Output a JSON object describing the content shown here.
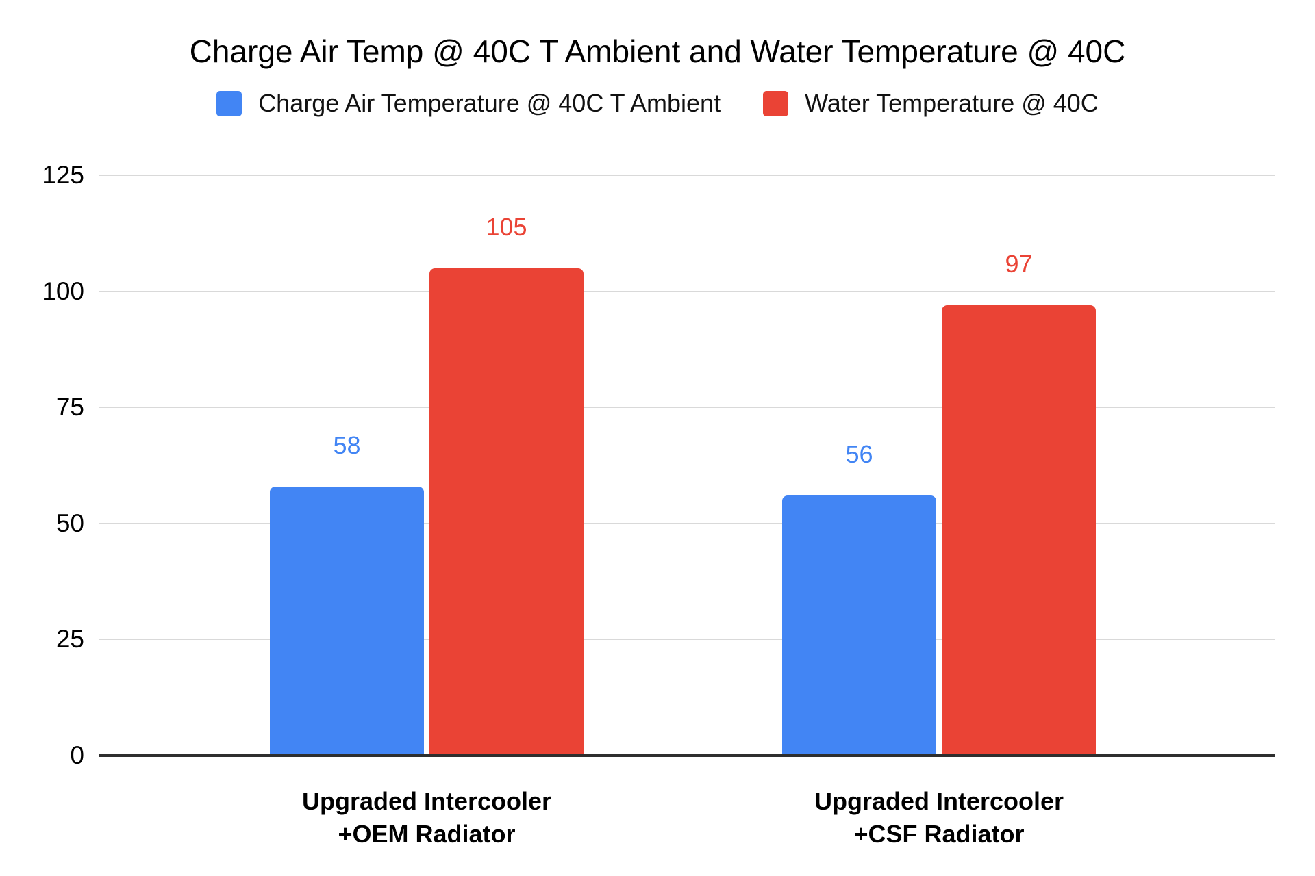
{
  "title": "Charge Air Temp @ 40C T Ambient and Water Temperature @ 40C",
  "legend": [
    {
      "label": "Charge Air Temperature @ 40C T Ambient",
      "color": "#4285F4"
    },
    {
      "label": "Water Temperature @ 40C",
      "color": "#EA4335"
    }
  ],
  "colors": {
    "series_blue": "#4285F4",
    "series_red": "#EA4335",
    "gridline": "#d9d9d9",
    "axis_line": "#2e2e2e",
    "text": "#000000"
  },
  "chart_data": {
    "type": "bar",
    "title": "Charge Air Temp @ 40C T Ambient and Water Temperature @ 40C",
    "categories": [
      "Upgraded Intercooler\n+OEM Radiator",
      "Upgraded Intercooler\n+CSF Radiator"
    ],
    "series": [
      {
        "name": "Charge Air Temperature @ 40C T Ambient",
        "color": "#4285F4",
        "values": [
          58,
          56
        ]
      },
      {
        "name": "Water Temperature @ 40C",
        "color": "#EA4335",
        "values": [
          105,
          97
        ]
      }
    ],
    "xlabel": "",
    "ylabel": "",
    "ylim": [
      0,
      125
    ],
    "yticks": [
      0,
      25,
      50,
      75,
      100,
      125
    ],
    "grid": true,
    "legend_position": "top",
    "data_labels": true
  }
}
